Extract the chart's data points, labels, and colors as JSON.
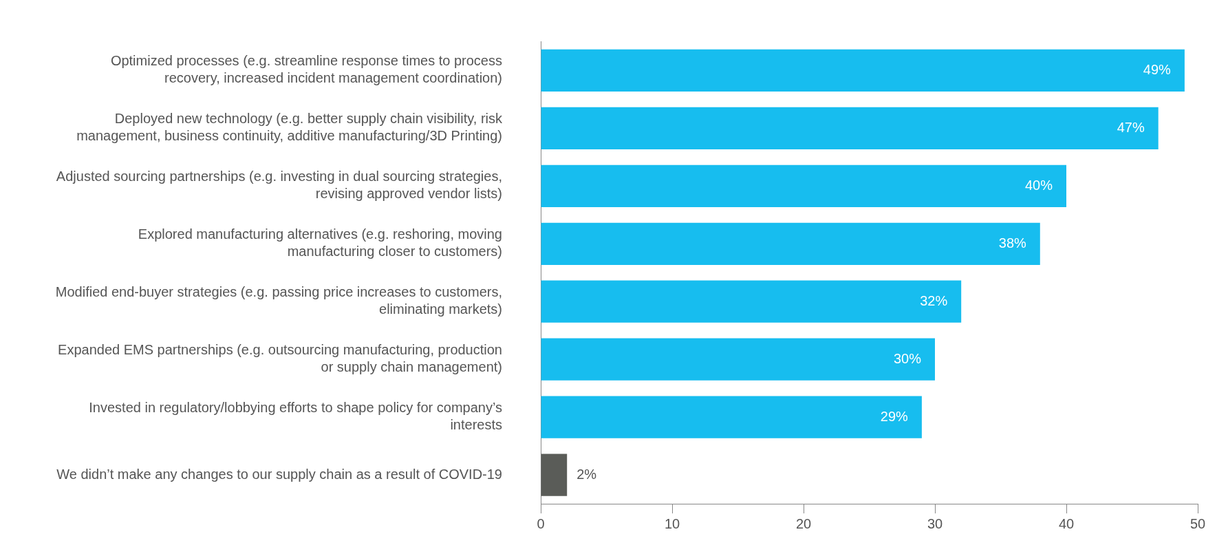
{
  "chart_data": {
    "type": "bar",
    "orientation": "horizontal",
    "categories": [
      "Optimized processes (e.g. streamline response times to process recovery, increased incident management coordination)",
      "Deployed new technology (e.g. better supply chain visibility, risk management, business continuity, additive manufacturing/3D Printing)",
      "Adjusted sourcing partnerships (e.g. investing in dual sourcing strategies, revising approved vendor lists)",
      "Explored manufacturing alternatives (e.g. reshoring, moving manufacturing closer to customers)",
      "Modified end-buyer strategies (e.g. passing price increases to customers, eliminating markets)",
      "Expanded EMS partnerships (e.g. outsourcing manufacturing, production or supply chain management)",
      "Invested in regulatory/lobbying efforts to shape policy for company’s interests",
      "We didn’t make any changes to our supply chain as a result of COVID-19"
    ],
    "values": [
      49,
      47,
      40,
      38,
      32,
      30,
      29,
      2
    ],
    "colors": [
      "#17bdef",
      "#17bdef",
      "#17bdef",
      "#17bdef",
      "#17bdef",
      "#17bdef",
      "#17bdef",
      "#5a5c58"
    ],
    "value_labels": [
      "49%",
      "47%",
      "40%",
      "38%",
      "32%",
      "30%",
      "29%",
      "2%"
    ],
    "xlim": [
      0,
      50
    ],
    "xticks": [
      0,
      10,
      20,
      30,
      40,
      50
    ],
    "grid": false,
    "legend": false
  }
}
